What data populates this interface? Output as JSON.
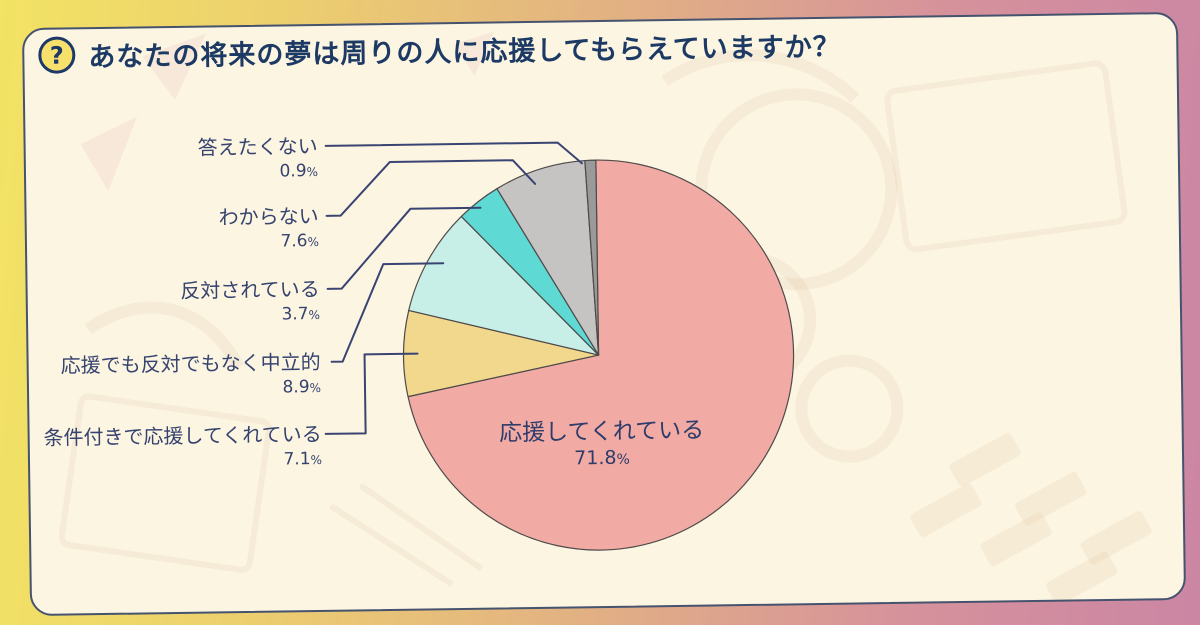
{
  "header": {
    "icon_glyph": "?",
    "title": "あなたの将来の夢は周りの人に応援してもらえていますか？"
  },
  "chart_data": {
    "type": "pie",
    "title": "あなたの将来の夢は周りの人に応援してもらえていますか？",
    "unit": "%",
    "direction": "clockwise",
    "start_angle_deg": 0,
    "legend_position": "left-callouts",
    "slices": [
      {
        "label": "応援してくれている",
        "value": 71.8,
        "color": "#F2ABA4",
        "label_placement": "inside"
      },
      {
        "label": "条件付きで応援してくれている",
        "value": 7.1,
        "color": "#F1D88D",
        "label_placement": "callout"
      },
      {
        "label": "応援でも反対でもなく中立的",
        "value": 8.9,
        "color": "#C8EEE8",
        "label_placement": "callout"
      },
      {
        "label": "反対されている",
        "value": 3.7,
        "color": "#5ED9D3",
        "label_placement": "callout"
      },
      {
        "label": "わからない",
        "value": 7.6,
        "color": "#C5C4C3",
        "label_placement": "callout"
      },
      {
        "label": "答えたくない",
        "value": 0.9,
        "color": "#9B9A9A",
        "label_placement": "callout"
      }
    ]
  },
  "colors": {
    "card_background": "#FCF5E2",
    "card_border": "#46536F",
    "title_text": "#1C3A64",
    "label_text": "#36436F",
    "leader_line": "#3A4472",
    "slice_outline": "#4E4A4A",
    "icon_fill": "#F8E06D",
    "frame_gradient_left": "#F2E364",
    "frame_gradient_right": "#CB86A4"
  }
}
